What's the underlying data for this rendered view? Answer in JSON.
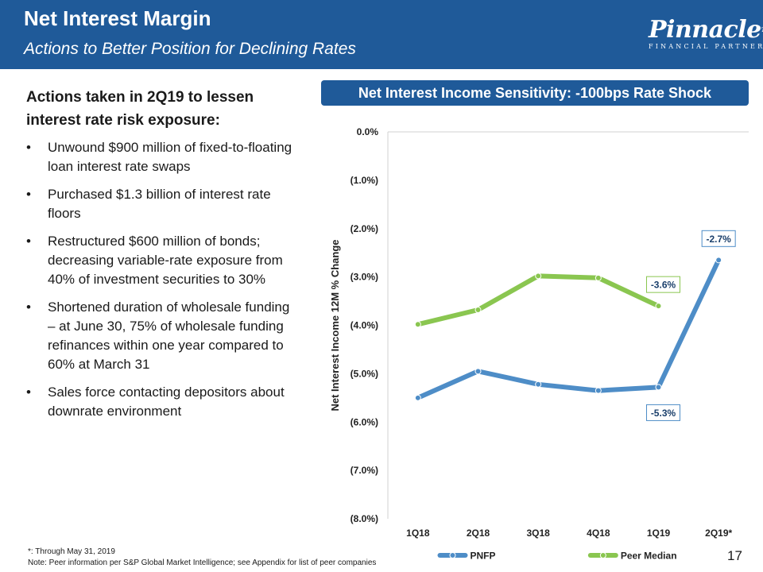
{
  "header": {
    "title": "Net Interest Margin",
    "subtitle": "Actions to Better Position for Declining Rates"
  },
  "logo": {
    "name": "Pinnacle",
    "tagline": "FINANCIAL PARTNERS",
    "tm": "TM"
  },
  "left": {
    "heading": "Actions taken in 2Q19 to lessen interest rate risk exposure:",
    "bullet_glyph": "•",
    "bullets": [
      "Unwound $900 million of fixed-to-floating loan interest rate swaps",
      "Purchased $1.3 billion of interest rate floors",
      "Restructured $600 million of bonds; decreasing variable-rate exposure from 40% of investment securities to 30%",
      "Shortened duration of wholesale funding – at June 30, 75% of wholesale funding refinances within one year compared to 60% at March 31",
      "Sales force contacting depositors about downrate environment"
    ]
  },
  "banner": {
    "text": "Net Interest Income Sensitivity:  -100bps Rate Shock"
  },
  "chart_data": {
    "type": "line",
    "title": "Net Interest Income Sensitivity:  -100bps Rate Shock",
    "categories": [
      "1Q18",
      "2Q18",
      "3Q18",
      "4Q18",
      "1Q19",
      "2Q19*"
    ],
    "ylabel": "Net Interest Income 12M % Change",
    "xlabel": "",
    "ylim": [
      -8.0,
      0.0
    ],
    "yticks": [
      0.0,
      -1.0,
      -2.0,
      -3.0,
      -4.0,
      -5.0,
      -6.0,
      -7.0,
      -8.0
    ],
    "ytick_labels": [
      "0.0%",
      "(1.0%)",
      "(2.0%)",
      "(3.0%)",
      "(4.0%)",
      "(5.0%)",
      "(6.0%)",
      "(7.0%)",
      "(8.0%)"
    ],
    "series": [
      {
        "name": "PNFP",
        "values": [
          -5.5,
          -4.95,
          -5.22,
          -5.35,
          -5.28,
          -2.65
        ],
        "color": "#4e8dc7",
        "labels": [
          {
            "index": 4,
            "text": "-5.3%",
            "position": "below"
          },
          {
            "index": 5,
            "text": "-2.7%",
            "position": "above"
          }
        ]
      },
      {
        "name": "Peer Median",
        "values": [
          -3.98,
          -3.68,
          -2.98,
          -3.02,
          -3.6,
          null
        ],
        "color": "#8ac650",
        "labels": [
          {
            "index": 4,
            "text": "-3.6%",
            "position": "above"
          }
        ]
      }
    ],
    "legend": "bottom",
    "grid": false
  },
  "footnotes": {
    "line1": "*: Through May 31, 2019",
    "line2": "Note:  Peer information per S&P Global Market Intelligence; see Appendix for list of peer companies"
  },
  "page_number": "17"
}
